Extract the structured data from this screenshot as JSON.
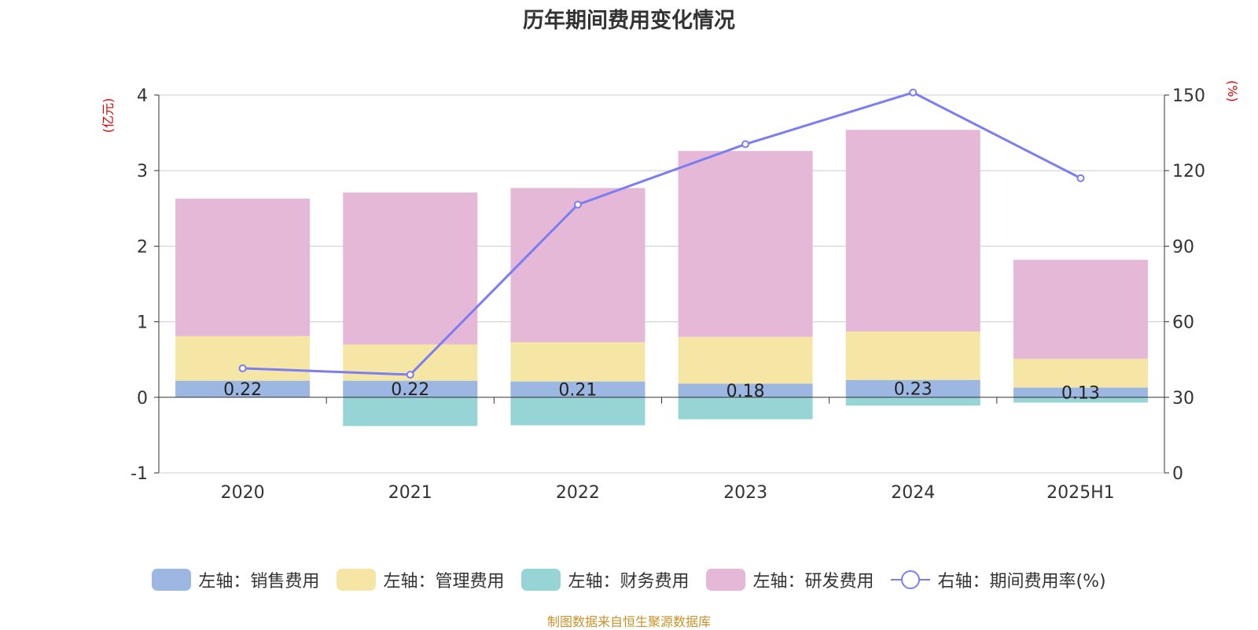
{
  "chart_data": {
    "type": "bar",
    "title": "历年期间费用变化情况",
    "categories": [
      "2020",
      "2021",
      "2022",
      "2023",
      "2024",
      "2025H1"
    ],
    "stacked": true,
    "left_axis": {
      "unit_label": "(亿元)",
      "ylim": [
        -1,
        4
      ],
      "ticks": [
        "-1",
        "0",
        "1",
        "2",
        "3",
        "4"
      ]
    },
    "right_axis": {
      "unit_label": "(%)",
      "ylim": [
        0,
        150
      ],
      "ticks": [
        "0",
        "30",
        "60",
        "90",
        "120",
        "150"
      ]
    },
    "series": [
      {
        "name": "左轴：销售费用",
        "axis": "left",
        "color": "#9cb7e2",
        "values": [
          0.22,
          0.22,
          0.21,
          0.18,
          0.23,
          0.13
        ],
        "data_labels": [
          "0.22",
          "0.22",
          "0.21",
          "0.18",
          "0.23",
          "0.13"
        ]
      },
      {
        "name": "左轴：管理费用",
        "axis": "left",
        "color": "#f6e6a6",
        "values": [
          0.59,
          0.48,
          0.52,
          0.62,
          0.64,
          0.38
        ]
      },
      {
        "name": "左轴：财务费用",
        "axis": "left",
        "color": "#97d4d6",
        "values": [
          0.0,
          -0.38,
          -0.37,
          -0.29,
          -0.11,
          -0.07
        ]
      },
      {
        "name": "左轴：研发费用",
        "axis": "left",
        "color": "#e6b8d8",
        "values": [
          1.82,
          2.01,
          2.04,
          2.46,
          2.67,
          1.31
        ]
      },
      {
        "name": "右轴：期间费用率(%)",
        "axis": "right",
        "type": "line",
        "color": "#7b7ef0",
        "values": [
          41.5,
          39.0,
          106.5,
          130.5,
          151.0,
          117.0
        ]
      }
    ],
    "grid": true,
    "legend_position": "bottom"
  },
  "source_note": "制图数据来自恒生聚源数据库"
}
